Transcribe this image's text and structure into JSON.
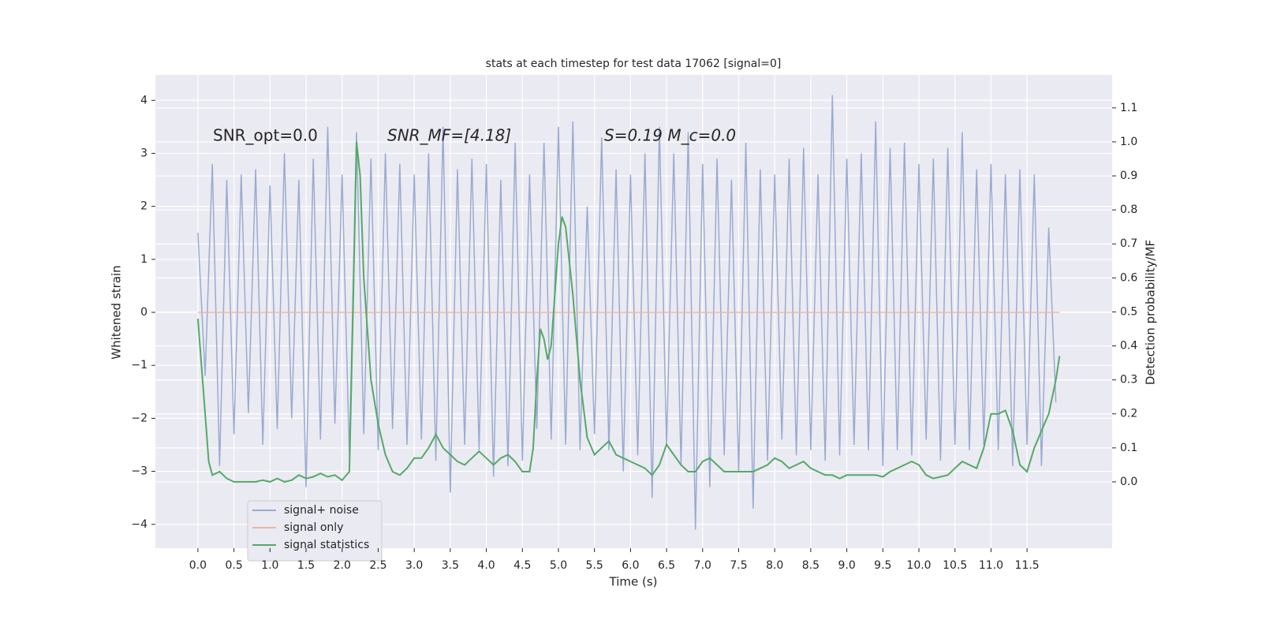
{
  "chart_data": {
    "type": "line",
    "title": "stats at each timestep for test data 17062 [signal=0]",
    "xlabel": "Time (s)",
    "ylabel": "Whitened strain",
    "y2label": "Detection probability/MF",
    "annotations": [
      "SNR_opt=0.0",
      "SNR_MF=[4.18]",
      "S=0.19   M_c=0.0"
    ],
    "xlim": [
      -0.59,
      12.68
    ],
    "ylim": [
      -4.45,
      4.48
    ],
    "y2lim": [
      -0.195,
      1.197
    ],
    "xticks": [
      {
        "value": 0,
        "label": "0.0"
      },
      0.5,
      {
        "value": 1,
        "label": "1.0"
      },
      1.5,
      {
        "value": 2,
        "label": "2.0"
      },
      2.5,
      {
        "value": 3,
        "label": "3.0"
      },
      3.5,
      {
        "value": 4,
        "label": "4.0"
      },
      4.5,
      {
        "value": 5,
        "label": "5.0"
      },
      5.5,
      {
        "value": 6,
        "label": "6.0"
      },
      6.5,
      {
        "value": 7,
        "label": "7.0"
      },
      7.5,
      {
        "value": 8,
        "label": "8.0"
      },
      8.5,
      {
        "value": 9,
        "label": "9.0"
      },
      9.5,
      {
        "value": 10,
        "label": "10.0"
      },
      10.5,
      {
        "value": 11,
        "label": "11.0"
      },
      11.5
    ],
    "yticks": [
      {
        "value": -4,
        "label": "−4"
      },
      {
        "value": -3,
        "label": "−3"
      },
      {
        "value": -2,
        "label": "−2"
      },
      {
        "value": -1,
        "label": "−1"
      },
      0,
      1,
      2,
      3,
      4
    ],
    "y2ticks": [
      {
        "value": 0,
        "label": "0.0"
      },
      0.1,
      0.2,
      0.3,
      0.4,
      0.5,
      0.6,
      0.7,
      0.8,
      0.9,
      {
        "value": 1,
        "label": "1.0"
      },
      1.1
    ],
    "grid": true,
    "legend": "lower left",
    "series": [
      {
        "name": "signal+ noise",
        "color": "#9aabd0",
        "x": [
          0.0,
          0.1,
          0.2,
          0.3,
          0.4,
          0.5,
          0.6,
          0.7,
          0.8,
          0.9,
          1.0,
          1.1,
          1.2,
          1.3,
          1.4,
          1.5,
          1.6,
          1.7,
          1.8,
          1.9,
          2.0,
          2.1,
          2.2,
          2.3,
          2.4,
          2.5,
          2.6,
          2.7,
          2.8,
          2.9,
          3.0,
          3.1,
          3.2,
          3.3,
          3.4,
          3.5,
          3.6,
          3.7,
          3.8,
          3.9,
          4.0,
          4.1,
          4.2,
          4.3,
          4.4,
          4.5,
          4.6,
          4.7,
          4.8,
          4.9,
          5.0,
          5.1,
          5.2,
          5.3,
          5.4,
          5.5,
          5.6,
          5.7,
          5.8,
          5.9,
          6.0,
          6.1,
          6.2,
          6.3,
          6.4,
          6.5,
          6.6,
          6.7,
          6.8,
          6.9,
          7.0,
          7.1,
          7.2,
          7.3,
          7.4,
          7.5,
          7.6,
          7.7,
          7.8,
          7.9,
          8.0,
          8.1,
          8.2,
          8.3,
          8.4,
          8.5,
          8.6,
          8.7,
          8.8,
          8.9,
          9.0,
          9.1,
          9.2,
          9.3,
          9.4,
          9.5,
          9.6,
          9.7,
          9.8,
          9.9,
          10.0,
          10.1,
          10.2,
          10.3,
          10.4,
          10.5,
          10.6,
          10.7,
          10.8,
          10.9,
          11.0,
          11.1,
          11.2,
          11.3,
          11.4,
          11.5,
          11.6,
          11.7,
          11.8,
          11.9
        ],
        "values": [
          1.5,
          -1.2,
          2.8,
          -2.9,
          2.5,
          -2.3,
          2.6,
          -1.9,
          2.7,
          -2.5,
          2.4,
          -2.2,
          3.0,
          -2.0,
          2.5,
          -3.3,
          2.9,
          -2.4,
          3.5,
          -2.1,
          2.6,
          -2.7,
          3.4,
          -2.3,
          2.9,
          -2.6,
          3.0,
          -2.2,
          2.8,
          -2.5,
          2.6,
          -2.4,
          3.0,
          -2.8,
          3.5,
          -3.4,
          2.7,
          -2.5,
          2.9,
          -2.6,
          2.8,
          -3.1,
          2.5,
          -2.9,
          3.2,
          -2.8,
          2.6,
          -2.2,
          3.2,
          -2.4,
          3.5,
          -2.5,
          3.6,
          -2.6,
          2.0,
          -2.3,
          3.3,
          -2.6,
          2.7,
          -3.0,
          2.6,
          -2.7,
          3.0,
          -3.5,
          3.5,
          -2.5,
          3.0,
          -2.9,
          3.4,
          -4.1,
          2.8,
          -3.3,
          2.9,
          -2.7,
          2.5,
          -3.0,
          3.2,
          -3.7,
          2.7,
          -2.8,
          2.6,
          -2.4,
          2.9,
          -2.7,
          3.1,
          -2.6,
          2.6,
          -2.8,
          4.1,
          -2.7,
          2.9,
          -2.5,
          3.0,
          -2.6,
          3.6,
          -2.9,
          3.1,
          -2.6,
          3.2,
          -2.7,
          2.8,
          -2.4,
          2.9,
          -2.8,
          3.1,
          -2.5,
          3.4,
          -2.6,
          2.7,
          -2.5,
          2.8,
          -2.6,
          2.6,
          -2.9,
          2.7,
          -2.5,
          2.6,
          -2.9,
          1.6,
          -1.7
        ]
      },
      {
        "name": "signal only",
        "color": "#e8b8a0",
        "x": [
          0.0,
          11.95
        ],
        "values": [
          0,
          0
        ]
      },
      {
        "name": "signal statistics",
        "color": "#55a868",
        "axis": "y2",
        "x": [
          0.0,
          0.1,
          0.15,
          0.2,
          0.3,
          0.4,
          0.5,
          0.6,
          0.7,
          0.8,
          0.9,
          1.0,
          1.1,
          1.2,
          1.3,
          1.4,
          1.5,
          1.6,
          1.7,
          1.8,
          1.9,
          2.0,
          2.1,
          2.15,
          2.2,
          2.25,
          2.3,
          2.4,
          2.5,
          2.6,
          2.7,
          2.8,
          2.9,
          3.0,
          3.1,
          3.2,
          3.3,
          3.4,
          3.5,
          3.6,
          3.7,
          3.8,
          3.9,
          4.0,
          4.1,
          4.2,
          4.3,
          4.4,
          4.5,
          4.6,
          4.65,
          4.7,
          4.75,
          4.8,
          4.85,
          4.9,
          5.0,
          5.05,
          5.1,
          5.2,
          5.3,
          5.4,
          5.5,
          5.6,
          5.7,
          5.8,
          5.9,
          6.0,
          6.1,
          6.2,
          6.3,
          6.4,
          6.5,
          6.6,
          6.7,
          6.8,
          6.9,
          7.0,
          7.1,
          7.2,
          7.3,
          7.5,
          7.6,
          7.7,
          7.8,
          7.9,
          8.0,
          8.1,
          8.2,
          8.3,
          8.4,
          8.5,
          8.6,
          8.7,
          8.8,
          8.9,
          9.0,
          9.1,
          9.2,
          9.4,
          9.5,
          9.6,
          9.7,
          9.8,
          9.9,
          10.0,
          10.1,
          10.2,
          10.4,
          10.5,
          10.6,
          10.7,
          10.8,
          10.9,
          11.0,
          11.1,
          11.2,
          11.3,
          11.4,
          11.5,
          11.6,
          11.7,
          11.8,
          11.9,
          11.95
        ],
        "values": [
          0.48,
          0.2,
          0.06,
          0.02,
          0.03,
          0.01,
          0.0,
          0.0,
          0.0,
          0.0,
          0.005,
          0.0,
          0.01,
          0.0,
          0.005,
          0.02,
          0.01,
          0.015,
          0.025,
          0.015,
          0.02,
          0.005,
          0.03,
          0.5,
          1.0,
          0.9,
          0.6,
          0.3,
          0.17,
          0.08,
          0.03,
          0.02,
          0.04,
          0.07,
          0.07,
          0.1,
          0.14,
          0.1,
          0.08,
          0.06,
          0.05,
          0.07,
          0.09,
          0.07,
          0.05,
          0.07,
          0.08,
          0.06,
          0.03,
          0.03,
          0.1,
          0.3,
          0.45,
          0.42,
          0.36,
          0.4,
          0.7,
          0.78,
          0.75,
          0.55,
          0.3,
          0.13,
          0.08,
          0.1,
          0.12,
          0.08,
          0.07,
          0.06,
          0.05,
          0.04,
          0.02,
          0.05,
          0.11,
          0.08,
          0.05,
          0.03,
          0.03,
          0.06,
          0.07,
          0.05,
          0.03,
          0.03,
          0.03,
          0.03,
          0.04,
          0.05,
          0.07,
          0.06,
          0.04,
          0.05,
          0.06,
          0.04,
          0.03,
          0.02,
          0.02,
          0.01,
          0.02,
          0.02,
          0.02,
          0.02,
          0.015,
          0.03,
          0.04,
          0.05,
          0.06,
          0.05,
          0.02,
          0.01,
          0.02,
          0.04,
          0.06,
          0.05,
          0.04,
          0.1,
          0.2,
          0.2,
          0.21,
          0.15,
          0.05,
          0.03,
          0.1,
          0.15,
          0.2,
          0.3,
          0.37
        ]
      }
    ]
  }
}
